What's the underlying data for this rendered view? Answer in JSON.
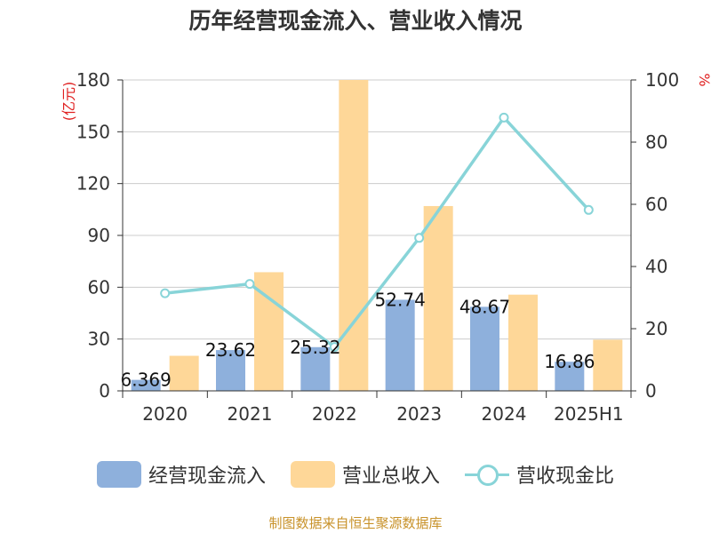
{
  "chart_data": {
    "type": "bar",
    "title": "历年经营现金流入、营业收入情况",
    "categories": [
      "2020",
      "2021",
      "2022",
      "2023",
      "2024",
      "2025H1"
    ],
    "y_left": {
      "label": "(亿元)",
      "ticks": [
        "0",
        "30",
        "60",
        "90",
        "120",
        "150",
        "180"
      ],
      "ylim": [
        0,
        180
      ]
    },
    "y_right": {
      "label": "%",
      "ticks": [
        "0",
        "20",
        "40",
        "60",
        "80",
        "100"
      ],
      "ylim": [
        0,
        100
      ]
    },
    "series": [
      {
        "name": "经营现金流入",
        "type": "bar",
        "axis": "left",
        "color": "#8eb0dc",
        "values": [
          6.369,
          23.62,
          25.32,
          52.74,
          48.67,
          16.86
        ],
        "labels": [
          "6.369",
          "23.62",
          "25.32",
          "52.74",
          "48.67",
          "16.86"
        ]
      },
      {
        "name": "营业总收入",
        "type": "bar",
        "axis": "left",
        "color": "#fed798",
        "values": [
          20.3,
          68.7,
          180,
          107,
          55.7,
          29.6
        ]
      },
      {
        "name": "营收现金比",
        "type": "line",
        "axis": "right",
        "color": "#88d4d8",
        "values": [
          31.4,
          34.4,
          14.1,
          49.2,
          87.9,
          58.2
        ]
      }
    ],
    "grid": true,
    "legend": "bottom-center",
    "source": "制图数据来自恒生聚源数据库"
  },
  "colors": {
    "left_axis_label": "#e02020",
    "source_text": "#c8922a",
    "grid": "#cccccc",
    "axis": "#333333"
  }
}
